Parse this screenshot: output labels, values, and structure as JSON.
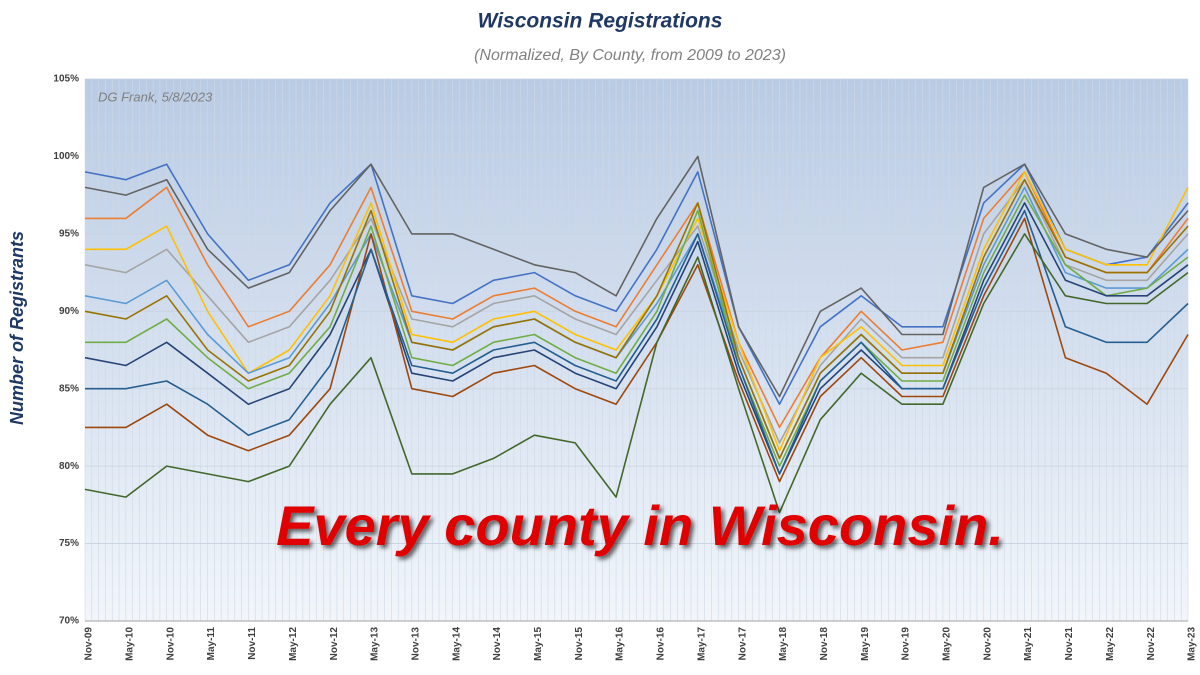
{
  "chart_data": {
    "type": "line",
    "title": "Wisconsin Registrations",
    "subtitle": "(Normalized, By County, from 2009 to 2023)",
    "y_label": "Number of Registrants",
    "annotations": [
      "DG Frank, 5/8/2023",
      "Every county in Wisconsin."
    ],
    "categories": [
      "Nov-09",
      "May-10",
      "Nov-10",
      "May-11",
      "Nov-11",
      "May-12",
      "Nov-12",
      "May-13",
      "Nov-13",
      "May-14",
      "Nov-14",
      "May-15",
      "Nov-15",
      "May-16",
      "Nov-16",
      "May-17",
      "Nov-17",
      "May-18",
      "Nov-18",
      "May-19",
      "Nov-19",
      "May-20",
      "Nov-20",
      "May-21",
      "Nov-21",
      "May-22",
      "Nov-22",
      "May-23"
    ],
    "series": [
      {
        "color": "#4472c4",
        "values": [
          99,
          98.5,
          99.5,
          95,
          92,
          93,
          97,
          99.5,
          91,
          90.5,
          92,
          92.5,
          91,
          90,
          94,
          99,
          89,
          84,
          89,
          91,
          89,
          89,
          97,
          99.5,
          94,
          93,
          93.5,
          97
        ]
      },
      {
        "color": "#ed7d31",
        "values": [
          96,
          96,
          98,
          93,
          89,
          90,
          93,
          98,
          90,
          89.5,
          91,
          91.5,
          90,
          89,
          93,
          97,
          88,
          82.5,
          87,
          90,
          87.5,
          88,
          96,
          99,
          93.5,
          92.5,
          92.5,
          96
        ]
      },
      {
        "color": "#a5a5a5",
        "values": [
          93,
          92.5,
          94,
          91,
          88,
          89,
          92,
          96,
          89.5,
          89,
          90.5,
          91,
          89.5,
          88.5,
          92,
          95.5,
          87.5,
          81.5,
          86.5,
          89.5,
          87,
          87,
          95,
          98.5,
          93,
          92,
          92,
          95
        ]
      },
      {
        "color": "#ffc000",
        "values": [
          94,
          94,
          95.5,
          90,
          86,
          87.5,
          91,
          97,
          88.5,
          88,
          89.5,
          90,
          88.5,
          87.5,
          91,
          96,
          88,
          81,
          87,
          89,
          86.5,
          86.5,
          94,
          99,
          94,
          93,
          93,
          98
        ]
      },
      {
        "color": "#5b9bd5",
        "values": [
          91,
          90.5,
          92,
          88.5,
          86,
          87,
          90.5,
          95,
          88,
          87.5,
          89,
          89.5,
          88,
          87,
          90.5,
          95,
          87,
          80.5,
          86,
          88.5,
          86,
          86,
          93,
          98,
          92.5,
          91.5,
          91.5,
          94
        ]
      },
      {
        "color": "#70ad47",
        "values": [
          88,
          88,
          89.5,
          87,
          85,
          86,
          89,
          95.5,
          87,
          86.5,
          88,
          88.5,
          87,
          86,
          90,
          96.5,
          86.5,
          80,
          85.5,
          88,
          85.5,
          85.5,
          92.5,
          97.5,
          93,
          91,
          91.5,
          93.5
        ]
      },
      {
        "color": "#264478",
        "values": [
          87,
          86.5,
          88,
          86,
          84,
          85,
          88.5,
          94,
          86,
          85.5,
          87,
          87.5,
          86,
          85,
          89,
          94.5,
          86,
          79.5,
          85,
          87.5,
          85,
          85,
          92,
          97,
          92,
          91,
          91,
          93
        ]
      },
      {
        "color": "#9e480e",
        "values": [
          82.5,
          82.5,
          84,
          82,
          81,
          82,
          85,
          95,
          85,
          84.5,
          86,
          86.5,
          85,
          84,
          88,
          93,
          85.5,
          79,
          84.5,
          87,
          84.5,
          84.5,
          91,
          96,
          87,
          86,
          84,
          88.5
        ]
      },
      {
        "color": "#636363",
        "values": [
          98,
          97.5,
          98.5,
          94,
          91.5,
          92.5,
          96.5,
          99.5,
          95,
          95,
          94,
          93,
          92.5,
          91,
          96,
          100,
          89,
          84.5,
          90,
          91.5,
          88.5,
          88.5,
          98,
          99.5,
          95,
          94,
          93.5,
          96.5
        ]
      },
      {
        "color": "#997300",
        "values": [
          90,
          89.5,
          91,
          87.5,
          85.5,
          86.5,
          90,
          96.5,
          88,
          87.5,
          89,
          89.5,
          88,
          87,
          91,
          97,
          87,
          80.5,
          86,
          88.5,
          86,
          86,
          93.5,
          98.5,
          93.5,
          92.5,
          92.5,
          95.5
        ]
      },
      {
        "color": "#255e91",
        "values": [
          85,
          85,
          85.5,
          84,
          82,
          83,
          86.5,
          94,
          86.5,
          86,
          87.5,
          88,
          86.5,
          85.5,
          89.5,
          95,
          86.5,
          79.5,
          85.5,
          88,
          85,
          85,
          91.5,
          96.5,
          89,
          88,
          88,
          90.5
        ]
      },
      {
        "color": "#43682b",
        "values": [
          78.5,
          78,
          80,
          79.5,
          79,
          80,
          84,
          87,
          79.5,
          79.5,
          80.5,
          82,
          81.5,
          78,
          88,
          93.5,
          85,
          77,
          83,
          86,
          84,
          84,
          90.5,
          95,
          91,
          90.5,
          90.5,
          92.5
        ]
      }
    ],
    "ylim": [
      70,
      105
    ],
    "yticks": [
      {
        "value": 70,
        "label": "70%"
      },
      {
        "value": 75,
        "label": "75%"
      },
      {
        "value": 80,
        "label": "80%"
      },
      {
        "value": 85,
        "label": "85%"
      },
      {
        "value": 90,
        "label": "90%"
      },
      {
        "value": 95,
        "label": "95%"
      },
      {
        "value": 100,
        "label": "100%"
      },
      {
        "value": 105,
        "label": "105%"
      }
    ],
    "grid": true
  }
}
